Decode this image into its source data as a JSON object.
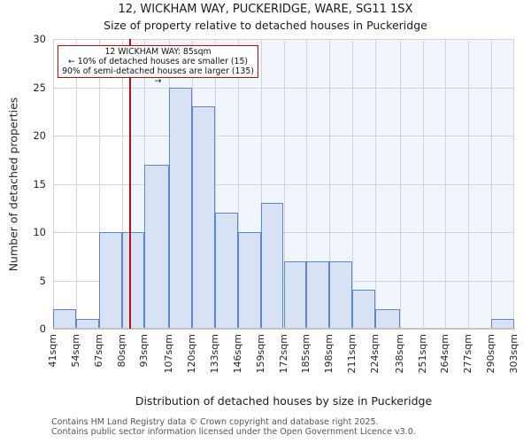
{
  "title": "12, WICKHAM WAY, PUCKERIDGE, WARE, SG11 1SX",
  "subtitle": "Size of property relative to detached houses in Puckeridge",
  "annotation": {
    "line1": "12 WICKHAM WAY: 85sqm",
    "line2": "← 10% of detached houses are smaller (15)",
    "line3": "90% of semi-detached houses are larger (135) →"
  },
  "chart_data": {
    "type": "bar",
    "title": "12, WICKHAM WAY, PUCKERIDGE, WARE, SG11 1SX",
    "subtitle": "Size of property relative to detached houses in Puckeridge",
    "xlabel": "Distribution of detached houses by size in Puckeridge",
    "ylabel": "Number of detached properties",
    "bin_edges_sqm": [
      41,
      54,
      67,
      80,
      93,
      107,
      120,
      133,
      146,
      159,
      172,
      185,
      198,
      211,
      224,
      238,
      251,
      264,
      277,
      290,
      303
    ],
    "x_tick_labels": [
      "41sqm",
      "54sqm",
      "67sqm",
      "80sqm",
      "93sqm",
      "107sqm",
      "120sqm",
      "133sqm",
      "146sqm",
      "159sqm",
      "172sqm",
      "185sqm",
      "198sqm",
      "211sqm",
      "224sqm",
      "238sqm",
      "251sqm",
      "264sqm",
      "277sqm",
      "290sqm",
      "303sqm"
    ],
    "values": [
      2,
      1,
      10,
      10,
      17,
      25,
      23,
      12,
      10,
      13,
      7,
      7,
      7,
      4,
      2,
      0,
      0,
      0,
      0,
      1
    ],
    "ylim": [
      0,
      30
    ],
    "y_ticks": [
      0,
      5,
      10,
      15,
      20,
      25,
      30
    ],
    "grid": true,
    "marker_value_sqm": 85,
    "colors": {
      "bar_fill": "#d7e2f4",
      "bar_edge": "#5b87d0",
      "band_fill": "#f1f5fc",
      "grid": "#d4d4d4",
      "marker_red": "#b90c0c"
    }
  },
  "footer": {
    "line1": "Contains HM Land Registry data © Crown copyright and database right 2025.",
    "line2": "Contains public sector information licensed under the Open Government Licence v3.0."
  }
}
